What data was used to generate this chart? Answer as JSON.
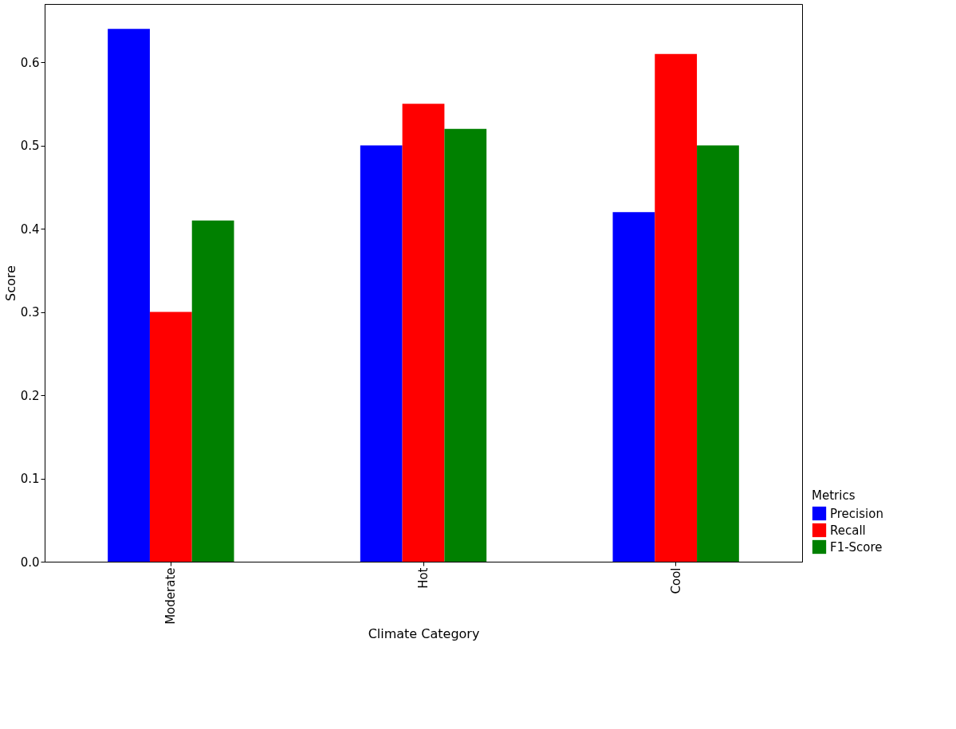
{
  "chart_data": {
    "type": "bar",
    "xlabel": "Climate Category",
    "ylabel": "Score",
    "legend_title": "Metrics",
    "categories": [
      "Moderate",
      "Hot",
      "Cool"
    ],
    "series": [
      {
        "name": "Precision",
        "color": "#0000ff",
        "values": [
          0.64,
          0.5,
          0.42
        ]
      },
      {
        "name": "Recall",
        "color": "#ff0000",
        "values": [
          0.3,
          0.55,
          0.61
        ]
      },
      {
        "name": "F1-Score",
        "color": "#008000",
        "values": [
          0.41,
          0.52,
          0.5
        ]
      }
    ],
    "ylim": [
      0,
      0.67
    ],
    "yticks": [
      {
        "value": 0,
        "label": "0.0"
      },
      0.1,
      0.2,
      0.3,
      0.4,
      0.5,
      0.6
    ],
    "grid": false,
    "legend": "bottom right"
  }
}
